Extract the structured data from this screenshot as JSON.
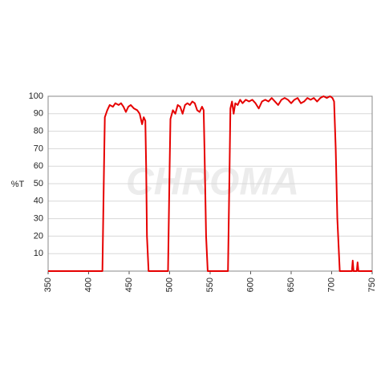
{
  "chart_data": {
    "type": "line",
    "watermark": "CHROMA",
    "y_label": "%T",
    "x": [
      350,
      417,
      419,
      420,
      423,
      426,
      430,
      433,
      437,
      440,
      443,
      446,
      449,
      452,
      456,
      460,
      463,
      466,
      468,
      470,
      471,
      472,
      474,
      498,
      500,
      501,
      504,
      507,
      510,
      513,
      516,
      519,
      522,
      525,
      528,
      531,
      534,
      537,
      540,
      542,
      543,
      545,
      547,
      572,
      574,
      575,
      577,
      579,
      581,
      584,
      587,
      590,
      594,
      598,
      602,
      606,
      610,
      614,
      618,
      622,
      626,
      630,
      634,
      638,
      642,
      646,
      650,
      654,
      658,
      662,
      666,
      670,
      674,
      678,
      682,
      686,
      690,
      694,
      698,
      701,
      703,
      705,
      707,
      710,
      725,
      726,
      727,
      731,
      732,
      733,
      750
    ],
    "series": [
      {
        "color": "#e60000",
        "values": [
          0,
          0,
          60,
          88,
          92,
          95,
          94,
          96,
          95,
          96,
          94,
          91,
          94,
          95,
          93,
          92,
          90,
          84,
          88,
          86,
          60,
          20,
          0,
          0,
          60,
          87,
          92,
          90,
          95,
          94,
          90,
          95,
          96,
          95,
          97,
          96,
          92,
          91,
          94,
          92,
          70,
          20,
          0,
          0,
          60,
          93,
          97,
          90,
          96,
          95,
          98,
          96,
          98,
          97,
          98,
          96,
          93,
          97,
          98,
          97,
          99,
          97,
          95,
          98,
          99,
          98,
          96,
          98,
          99,
          96,
          97,
          99,
          98,
          99,
          97,
          99,
          100,
          99,
          100,
          99,
          97,
          70,
          30,
          0,
          0,
          6,
          0,
          0,
          5,
          0,
          0
        ]
      }
    ],
    "xlim": [
      350,
      750
    ],
    "ylim": [
      0,
      100
    ],
    "xticks": [
      350,
      400,
      450,
      500,
      550,
      600,
      650,
      700,
      750
    ],
    "yticks": [
      10,
      20,
      30,
      40,
      50,
      60,
      70,
      80,
      90,
      100
    ],
    "grid": true
  }
}
